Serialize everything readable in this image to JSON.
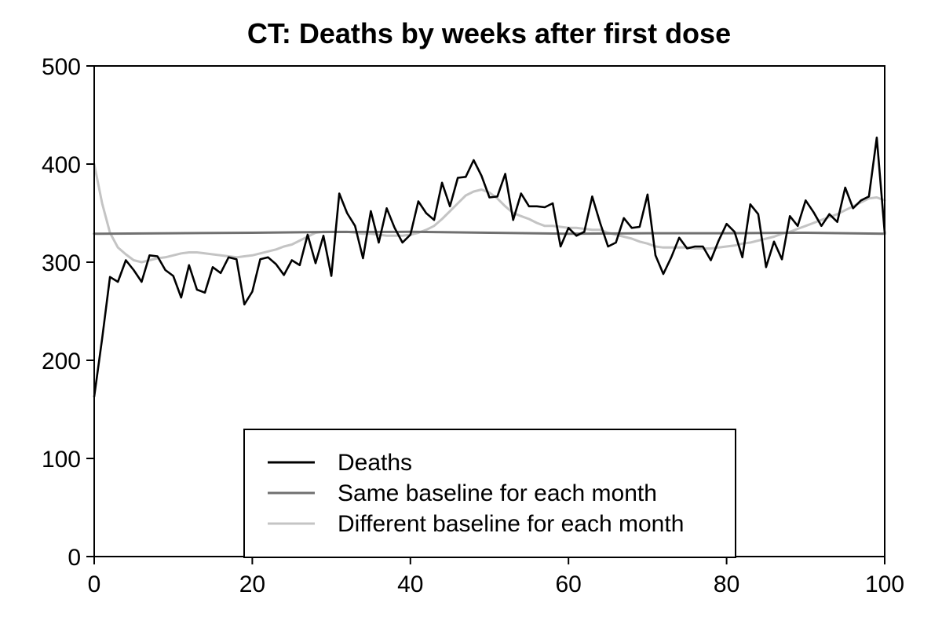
{
  "chart_data": {
    "type": "line",
    "title": "CT: Deaths by weeks after first dose",
    "xlabel": "",
    "ylabel": "",
    "xlim": [
      0,
      100
    ],
    "ylim": [
      0,
      500
    ],
    "x_ticks": [
      0,
      20,
      40,
      60,
      80,
      100
    ],
    "y_ticks": [
      0,
      100,
      200,
      300,
      400,
      500
    ],
    "grid": false,
    "legend_position": "bottom-center",
    "series": [
      {
        "name": "Deaths",
        "color": "#000000",
        "x": [
          0,
          1,
          2,
          3,
          4,
          5,
          6,
          7,
          8,
          9,
          10,
          11,
          12,
          13,
          14,
          15,
          16,
          17,
          18,
          19,
          20,
          21,
          22,
          23,
          24,
          25,
          26,
          27,
          28,
          29,
          30,
          31,
          32,
          33,
          34,
          35,
          36,
          37,
          38,
          39,
          40,
          41,
          42,
          43,
          44,
          45,
          46,
          47,
          48,
          49,
          50,
          51,
          52,
          53,
          54,
          55,
          56,
          57,
          58,
          59,
          60,
          61,
          62,
          63,
          64,
          65,
          66,
          67,
          68,
          69,
          70,
          71,
          72,
          73,
          74,
          75,
          76,
          77,
          78,
          79,
          80,
          81,
          82,
          83,
          84,
          85,
          86,
          87,
          88,
          89,
          90,
          91,
          92,
          93,
          94,
          95,
          96,
          97,
          98,
          99,
          100
        ],
        "values": [
          163,
          222,
          285,
          280,
          302,
          292,
          280,
          307,
          306,
          292,
          286,
          264,
          297,
          272,
          269,
          295,
          289,
          305,
          303,
          257,
          270,
          303,
          305,
          298,
          287,
          302,
          297,
          328,
          299,
          327,
          286,
          370,
          350,
          337,
          304,
          352,
          320,
          355,
          335,
          320,
          328,
          362,
          350,
          343,
          381,
          357,
          386,
          387,
          404,
          388,
          366,
          367,
          390,
          343,
          370,
          357,
          357,
          356,
          360,
          316,
          335,
          327,
          331,
          367,
          340,
          316,
          320,
          345,
          335,
          336,
          369,
          307,
          288,
          305,
          325,
          314,
          316,
          316,
          302,
          322,
          339,
          331,
          305,
          359,
          349,
          295,
          321,
          303,
          347,
          337,
          363,
          351,
          337,
          349,
          341,
          376,
          355,
          363,
          367,
          427,
          330
        ]
      },
      {
        "name": "Same baseline for each month",
        "color": "#707070",
        "x": [
          0,
          10,
          20,
          30,
          40,
          50,
          60,
          70,
          80,
          90,
          100
        ],
        "values": [
          329,
          329.5,
          330,
          330.8,
          331,
          330,
          329,
          329.5,
          329.5,
          330,
          329
        ]
      },
      {
        "name": "Different baseline for each month",
        "color": "#c4c4c4",
        "x": [
          0,
          1,
          2,
          3,
          4,
          5,
          6,
          7,
          8,
          9,
          10,
          11,
          12,
          13,
          14,
          15,
          16,
          17,
          18,
          19,
          20,
          21,
          22,
          23,
          24,
          25,
          26,
          27,
          28,
          29,
          30,
          31,
          32,
          33,
          34,
          35,
          36,
          37,
          38,
          39,
          40,
          41,
          42,
          43,
          44,
          45,
          46,
          47,
          48,
          49,
          50,
          51,
          52,
          53,
          54,
          55,
          56,
          57,
          58,
          59,
          60,
          61,
          62,
          63,
          64,
          65,
          66,
          67,
          68,
          69,
          70,
          71,
          72,
          73,
          74,
          75,
          76,
          77,
          78,
          79,
          80,
          81,
          82,
          83,
          84,
          85,
          86,
          87,
          88,
          89,
          90,
          91,
          92,
          93,
          94,
          95,
          96,
          97,
          98,
          99,
          100
        ],
        "values": [
          400,
          360,
          330,
          315,
          308,
          302,
          300,
          302,
          304,
          305,
          307,
          309,
          310,
          310,
          309,
          308,
          307,
          306,
          305,
          306,
          307,
          309,
          311,
          313,
          316,
          318,
          322,
          326,
          330,
          331,
          331,
          331,
          331,
          330,
          329,
          329,
          328,
          327,
          327,
          327,
          328,
          330,
          333,
          337,
          344,
          352,
          360,
          368,
          372,
          374,
          371,
          365,
          357,
          350,
          347,
          344,
          340,
          337,
          337,
          336,
          335,
          335,
          334,
          333,
          333,
          330,
          328,
          326,
          324,
          321,
          319,
          316,
          315,
          315,
          315,
          315,
          314,
          314,
          314,
          315,
          316,
          317,
          319,
          320,
          322,
          324,
          326,
          329,
          331,
          334,
          337,
          340,
          343,
          346,
          349,
          353,
          357,
          361,
          365,
          366,
          363
        ]
      }
    ]
  }
}
